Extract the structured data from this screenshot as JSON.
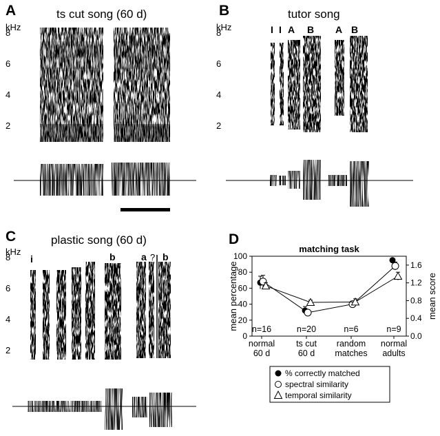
{
  "panels": {
    "A": {
      "label": "A",
      "title": "ts cut song (60 d)",
      "unit": "kHz",
      "ticks": [
        "8",
        "6",
        "4",
        "2"
      ],
      "syllables": []
    },
    "B": {
      "label": "B",
      "title": "tutor song",
      "unit": "kHz",
      "ticks": [
        "8",
        "6",
        "4",
        "2"
      ],
      "syllables": [
        "I",
        "I",
        "A",
        "B",
        "A",
        "B"
      ]
    },
    "C": {
      "label": "C",
      "title": "plastic song (60 d)",
      "unit": "kHz",
      "ticks": [
        "8",
        "6",
        "4",
        "2"
      ],
      "syllables": [
        "i",
        "b",
        "a",
        "?",
        "b"
      ]
    },
    "D": {
      "label": "D"
    }
  },
  "chart_data": {
    "type": "line",
    "title": "matching task",
    "ylabel": "mean percentage",
    "ylabel_right": "mean score",
    "ylim": [
      0,
      100
    ],
    "ylim_right": [
      0,
      1.8
    ],
    "yticks": [
      "0",
      "20",
      "40",
      "60",
      "80",
      "100"
    ],
    "yticks_right": [
      "0.0",
      "0.4",
      "0.8",
      "1.2",
      "1.6"
    ],
    "categories": [
      "normal\n60 d",
      "ts cut\n60 d",
      "random\nmatches",
      "normal\nadults"
    ],
    "counts": [
      "n=16",
      "n=20",
      "n=6",
      "n=9"
    ],
    "series": [
      {
        "name": "% correctly matched",
        "marker": "filled-circle",
        "axis": "left",
        "values": [
          67,
          32,
          null,
          95
        ],
        "errors": [
          8,
          5,
          null,
          2
        ]
      },
      {
        "name": "spectral similarity",
        "marker": "open-circle",
        "axis": "right",
        "values": [
          1.23,
          0.53,
          0.72,
          1.58
        ],
        "errors": [
          0.14,
          0.05,
          0.07,
          0.09
        ]
      },
      {
        "name": "temporal similarity",
        "marker": "open-triangle",
        "axis": "right",
        "values": [
          1.13,
          0.76,
          0.77,
          1.35
        ],
        "errors": [
          0.07,
          0.05,
          0.07,
          0.09
        ]
      }
    ],
    "legend_position": "bottom"
  }
}
